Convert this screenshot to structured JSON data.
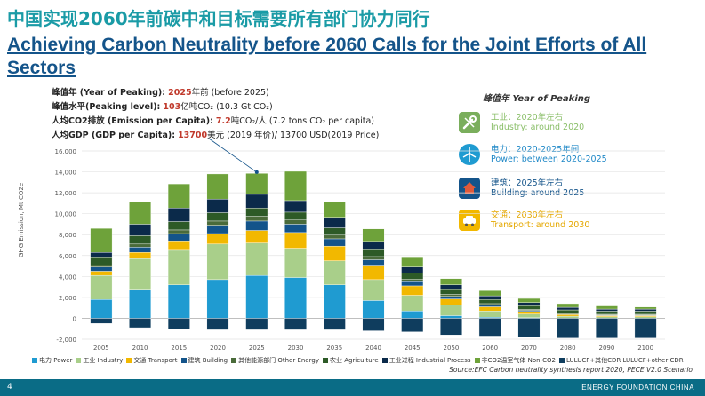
{
  "header": {
    "title_cn": "中国实现2060年前碳中和目标需要所有部门协力同行",
    "title_en": "Achieving Carbon Neutrality before 2060 Calls for the Joint Efforts of All Sectors"
  },
  "stats": {
    "peaking_year": {
      "label": "峰值年 (Year of Peaking):",
      "value": "2025",
      "rest": "年前 (before 2025)"
    },
    "peaking_level": {
      "label": "峰值水平(Peaking level):",
      "value": "103",
      "rest": "亿吨CO₂ (10.3 Gt CO₂)"
    },
    "per_capita": {
      "label": "人均CO2排放 (Emission per Capita):",
      "value": "7.2",
      "rest": "吨CO₂/人 (7.2 tons CO₂ per capita)"
    },
    "gdp": {
      "label": "人均GDP (GDP per Capita):",
      "value": "13700",
      "rest": "美元 (2019 年价)/ 13700 USD(2019 Price)"
    }
  },
  "peaking_panel": {
    "title": "峰值年 Year of Peaking",
    "items": [
      {
        "icon": "wrench-icon",
        "cn": "工业：2020年左右",
        "en": "Industry: around 2020",
        "color": "#8bbf6a",
        "icon_bg": "#7aae5c"
      },
      {
        "icon": "wind-turbine-icon",
        "cn": "电力：2020-2025年间",
        "en": "Power: between 2020-2025",
        "color": "#1f88c7",
        "icon_bg": "#1f9bd1"
      },
      {
        "icon": "house-icon",
        "cn": "建筑：2025年左右",
        "en": "Building: around 2025",
        "color": "#14548a",
        "icon_bg": "#14548a"
      },
      {
        "icon": "car-icon",
        "cn": "交通：2030年左右",
        "en": "Transport: around 2030",
        "color": "#e5a800",
        "icon_bg": "#f2b800"
      }
    ]
  },
  "chart_data": {
    "type": "bar",
    "stacked": true,
    "ylabel": "GHG Emission, Mt CO2e",
    "ylim": [
      -2000,
      16000
    ],
    "yticks": [
      -2000,
      0,
      2000,
      4000,
      6000,
      8000,
      10000,
      12000,
      14000,
      16000
    ],
    "ytick_labels": [
      "-2,000",
      "0",
      "2,000",
      "4,000",
      "6,000",
      "8,000",
      "10,000",
      "12,000",
      "14,000",
      "16,000"
    ],
    "categories": [
      "2005",
      "2010",
      "2015",
      "2020",
      "2025",
      "2030",
      "2035",
      "2040",
      "2045",
      "2050",
      "2060",
      "2070",
      "2080",
      "2090",
      "2100"
    ],
    "series": [
      {
        "name": "电力 Power",
        "color": "#1f9bd1",
        "values": [
          1800,
          2700,
          3200,
          3700,
          4100,
          3900,
          3200,
          1700,
          700,
          250,
          100,
          50,
          0,
          0,
          0
        ]
      },
      {
        "name": "工业 Industry",
        "color": "#a9cf8a",
        "values": [
          2300,
          3000,
          3300,
          3400,
          3100,
          2800,
          2300,
          2000,
          1500,
          1000,
          600,
          350,
          200,
          150,
          150
        ]
      },
      {
        "name": "交通 Transport",
        "color": "#f2b800",
        "values": [
          400,
          600,
          900,
          1000,
          1200,
          1500,
          1400,
          1300,
          900,
          600,
          400,
          250,
          150,
          100,
          100
        ]
      },
      {
        "name": "建筑 Building",
        "color": "#14548a",
        "values": [
          400,
          500,
          700,
          800,
          900,
          800,
          700,
          600,
          400,
          250,
          150,
          100,
          50,
          50,
          50
        ]
      },
      {
        "name": "其他能源部门 Other Energy",
        "color": "#4a6b3a",
        "values": [
          200,
          300,
          350,
          400,
          450,
          400,
          350,
          300,
          250,
          200,
          150,
          100,
          100,
          80,
          80
        ]
      },
      {
        "name": "农业 Agriculture",
        "color": "#2d5a27",
        "values": [
          700,
          800,
          800,
          800,
          800,
          750,
          700,
          650,
          550,
          450,
          400,
          350,
          300,
          300,
          300
        ]
      },
      {
        "name": "工业过程 Industrial Process",
        "color": "#0b2a4a",
        "values": [
          500,
          1100,
          1300,
          1300,
          1300,
          1100,
          1000,
          800,
          600,
          450,
          350,
          300,
          250,
          200,
          200
        ]
      },
      {
        "name": "非CO2温室气体 Non-CO2",
        "color": "#6ea23a",
        "values": [
          2300,
          2100,
          2300,
          2400,
          2000,
          2800,
          1500,
          1200,
          900,
          600,
          500,
          400,
          350,
          300,
          200
        ]
      },
      {
        "name": "LULUCF+其他CDR LULUCF+other CDR",
        "color": "#0f3d5e",
        "values": [
          -500,
          -900,
          -1000,
          -1100,
          -1100,
          -1100,
          -1100,
          -1200,
          -1300,
          -1600,
          -1700,
          -1800,
          -1900,
          -1900,
          -1900
        ]
      }
    ],
    "annotation": {
      "x": "2025",
      "y": 13800
    }
  },
  "footer": {
    "page_number": "4",
    "org": "ENERGY FOUNDATION CHINA",
    "source": "Source:EFC Carbon neutrality synthesis report 2020, PECE V2.0 Scenario"
  }
}
